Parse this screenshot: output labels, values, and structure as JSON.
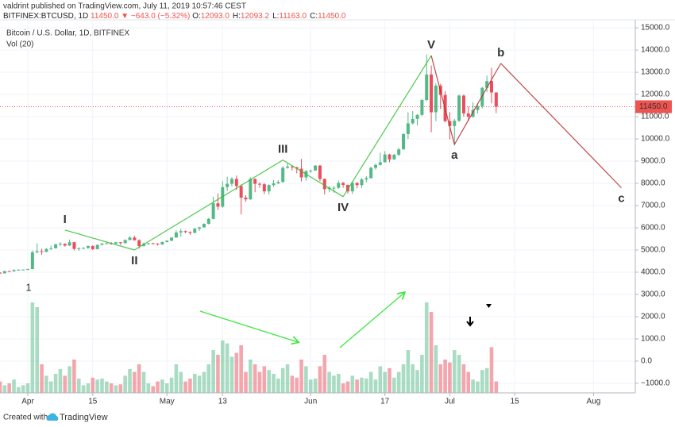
{
  "header": {
    "line1": "valdrint published on TradingView.com, July 11, 2019 10:57:46 CEST",
    "symbol": "BITFINEX:BTCUSD, 1D",
    "price": "11450.0",
    "change": "▼ −643.0 (−5.32%)",
    "ohlc": [
      {
        "label": "O:",
        "value": "12093.0"
      },
      {
        "label": "H:",
        "value": "12093.2"
      },
      {
        "label": "L:",
        "value": "11163.0"
      },
      {
        "label": "C:",
        "value": "11450.0"
      }
    ]
  },
  "footer": {
    "created": "Created with",
    "brand": "TradingView"
  },
  "chart_data": {
    "type": "candlestick",
    "title": "Bitcoin / U.S. Dollar, 1D, BITFINEX",
    "volume_label": "Vol (20)",
    "annotations": [
      "1"
    ],
    "up_color": "#53b987",
    "down_color": "#eb4d5c",
    "grid": true,
    "xlim": [
      "2019-03-26",
      "2019-08-10"
    ],
    "xticks": [
      {
        "value": "2019-04-01",
        "label": "Apr"
      },
      {
        "value": "2019-04-15",
        "label": "15"
      },
      {
        "value": "2019-05-01",
        "label": "May"
      },
      {
        "value": "2019-05-13",
        "label": "13"
      },
      {
        "value": "2019-06-01",
        "label": "Jun"
      },
      {
        "value": "2019-06-17",
        "label": "17"
      },
      {
        "value": "2019-07-01",
        "label": "Jul"
      },
      {
        "value": "2019-07-15",
        "label": "15"
      },
      {
        "value": "2019-08-01",
        "label": "Aug"
      }
    ],
    "ylim": [
      -1430,
      15360
    ],
    "yticks": [
      {
        "value": 15000,
        "label": "15000.0"
      },
      {
        "value": 14000,
        "label": "14000.0"
      },
      {
        "value": 13000,
        "label": "13000.0"
      },
      {
        "value": 12000,
        "label": "12000.0"
      },
      {
        "value": 11000,
        "label": "11000.0"
      },
      {
        "value": 10000,
        "label": "10000.0"
      },
      {
        "value": 9000,
        "label": "9000.0"
      },
      {
        "value": 8000,
        "label": "8000.0"
      },
      {
        "value": 7000,
        "label": "7000.0"
      },
      {
        "value": 6000,
        "label": "6000.0"
      },
      {
        "value": 5000,
        "label": "5000.0"
      },
      {
        "value": 4000,
        "label": "4000.0"
      },
      {
        "value": 3000,
        "label": "3000.0"
      },
      {
        "value": 2000,
        "label": "2000.0"
      },
      {
        "value": 1000,
        "label": "1000.0"
      },
      {
        "value": 0,
        "label": "0.0"
      },
      {
        "value": -1000,
        "label": "−1000.0"
      }
    ],
    "last_price": {
      "value": 11450,
      "label": "11450.0",
      "color": "#ef5350"
    },
    "volume_ylim": [
      0,
      100
    ],
    "x": [
      "2019-03-26",
      "2019-03-27",
      "2019-03-28",
      "2019-03-29",
      "2019-03-30",
      "2019-03-31",
      "2019-04-01",
      "2019-04-02",
      "2019-04-03",
      "2019-04-04",
      "2019-04-05",
      "2019-04-06",
      "2019-04-07",
      "2019-04-08",
      "2019-04-09",
      "2019-04-10",
      "2019-04-11",
      "2019-04-12",
      "2019-04-13",
      "2019-04-14",
      "2019-04-15",
      "2019-04-16",
      "2019-04-17",
      "2019-04-18",
      "2019-04-19",
      "2019-04-20",
      "2019-04-21",
      "2019-04-22",
      "2019-04-23",
      "2019-04-24",
      "2019-04-25",
      "2019-04-26",
      "2019-04-27",
      "2019-04-28",
      "2019-04-29",
      "2019-04-30",
      "2019-05-01",
      "2019-05-02",
      "2019-05-03",
      "2019-05-04",
      "2019-05-05",
      "2019-05-06",
      "2019-05-07",
      "2019-05-08",
      "2019-05-09",
      "2019-05-10",
      "2019-05-11",
      "2019-05-12",
      "2019-05-13",
      "2019-05-14",
      "2019-05-15",
      "2019-05-16",
      "2019-05-17",
      "2019-05-18",
      "2019-05-19",
      "2019-05-20",
      "2019-05-21",
      "2019-05-22",
      "2019-05-23",
      "2019-05-24",
      "2019-05-25",
      "2019-05-26",
      "2019-05-27",
      "2019-05-28",
      "2019-05-29",
      "2019-05-30",
      "2019-05-31",
      "2019-06-01",
      "2019-06-02",
      "2019-06-03",
      "2019-06-04",
      "2019-06-05",
      "2019-06-06",
      "2019-06-07",
      "2019-06-08",
      "2019-06-09",
      "2019-06-10",
      "2019-06-11",
      "2019-06-12",
      "2019-06-13",
      "2019-06-14",
      "2019-06-15",
      "2019-06-16",
      "2019-06-17",
      "2019-06-18",
      "2019-06-19",
      "2019-06-20",
      "2019-06-21",
      "2019-06-22",
      "2019-06-23",
      "2019-06-24",
      "2019-06-25",
      "2019-06-26",
      "2019-06-27",
      "2019-06-28",
      "2019-06-29",
      "2019-06-30",
      "2019-07-01",
      "2019-07-02",
      "2019-07-03",
      "2019-07-04",
      "2019-07-05",
      "2019-07-06",
      "2019-07-07",
      "2019-07-08",
      "2019-07-09",
      "2019-07-10",
      "2019-07-11"
    ],
    "candles": [
      [
        3980,
        4000,
        3930,
        3950
      ],
      [
        3950,
        4070,
        3940,
        4050
      ],
      [
        4050,
        4070,
        4020,
        4040
      ],
      [
        4040,
        4130,
        4030,
        4100
      ],
      [
        4100,
        4140,
        4070,
        4110
      ],
      [
        4110,
        4130,
        4090,
        4120
      ],
      [
        4120,
        4160,
        4100,
        4140
      ],
      [
        4140,
        4980,
        4140,
        4900
      ],
      [
        4900,
        5300,
        4850,
        4950
      ],
      [
        4950,
        5060,
        4780,
        4920
      ],
      [
        4920,
        5080,
        4900,
        5050
      ],
      [
        5050,
        5200,
        5000,
        5080
      ],
      [
        5080,
        5290,
        5070,
        5250
      ],
      [
        5250,
        5350,
        5180,
        5280
      ],
      [
        5280,
        5300,
        5150,
        5200
      ],
      [
        5200,
        5470,
        5180,
        5350
      ],
      [
        5350,
        5370,
        4980,
        5050
      ],
      [
        5050,
        5120,
        4960,
        5080
      ],
      [
        5080,
        5130,
        5050,
        5090
      ],
      [
        5090,
        5200,
        5060,
        5180
      ],
      [
        5180,
        5210,
        5000,
        5040
      ],
      [
        5040,
        5250,
        5030,
        5230
      ],
      [
        5230,
        5320,
        5210,
        5280
      ],
      [
        5280,
        5340,
        5260,
        5300
      ],
      [
        5300,
        5350,
        5240,
        5290
      ],
      [
        5290,
        5370,
        5270,
        5350
      ],
      [
        5350,
        5360,
        5230,
        5310
      ],
      [
        5310,
        5480,
        5280,
        5450
      ],
      [
        5450,
        5620,
        5440,
        5560
      ],
      [
        5560,
        5640,
        5420,
        5440
      ],
      [
        5440,
        5480,
        5060,
        5180
      ],
      [
        5180,
        5340,
        5150,
        5280
      ],
      [
        5280,
        5320,
        5240,
        5300
      ],
      [
        5300,
        5320,
        5260,
        5290
      ],
      [
        5290,
        5300,
        5200,
        5250
      ],
      [
        5250,
        5380,
        5230,
        5360
      ],
      [
        5360,
        5440,
        5340,
        5420
      ],
      [
        5420,
        5580,
        5400,
        5560
      ],
      [
        5560,
        5880,
        5550,
        5790
      ],
      [
        5790,
        5950,
        5600,
        5850
      ],
      [
        5850,
        5880,
        5750,
        5810
      ],
      [
        5810,
        5840,
        5680,
        5770
      ],
      [
        5770,
        6000,
        5760,
        5960
      ],
      [
        5960,
        6050,
        5860,
        6020
      ],
      [
        6020,
        6200,
        6010,
        6180
      ],
      [
        6180,
        6450,
        6150,
        6400
      ],
      [
        6400,
        7400,
        6380,
        7100
      ],
      [
        7100,
        7550,
        6800,
        6950
      ],
      [
        6950,
        8100,
        6900,
        7830
      ],
      [
        7830,
        8300,
        7650,
        7980
      ],
      [
        7980,
        8280,
        7860,
        8200
      ],
      [
        8200,
        8350,
        7700,
        7880
      ],
      [
        7880,
        7950,
        6600,
        7360
      ],
      [
        7360,
        7470,
        7170,
        7280
      ],
      [
        7280,
        8270,
        7260,
        8200
      ],
      [
        8200,
        8220,
        7600,
        7980
      ],
      [
        7980,
        8050,
        7800,
        7960
      ],
      [
        7960,
        8020,
        7520,
        7640
      ],
      [
        7640,
        7960,
        7500,
        7920
      ],
      [
        7920,
        8150,
        7850,
        8000
      ],
      [
        8000,
        8140,
        7960,
        8060
      ],
      [
        8060,
        8780,
        8030,
        8700
      ],
      [
        8700,
        8930,
        8660,
        8760
      ],
      [
        8760,
        8800,
        8580,
        8720
      ],
      [
        8720,
        8750,
        8450,
        8660
      ],
      [
        8660,
        9100,
        8080,
        8270
      ],
      [
        8270,
        8600,
        8120,
        8550
      ],
      [
        8550,
        8620,
        8470,
        8580
      ],
      [
        8580,
        8820,
        8560,
        8800
      ],
      [
        8800,
        8830,
        8100,
        8200
      ],
      [
        8200,
        8220,
        7500,
        7740
      ],
      [
        7740,
        7880,
        7600,
        7800
      ],
      [
        7800,
        7880,
        7580,
        7800
      ],
      [
        7800,
        8130,
        7750,
        8020
      ],
      [
        8020,
        8060,
        7800,
        7930
      ],
      [
        7930,
        7950,
        7540,
        7640
      ],
      [
        7640,
        8100,
        7520,
        8020
      ],
      [
        8020,
        8050,
        7780,
        7920
      ],
      [
        7920,
        8240,
        7800,
        8180
      ],
      [
        8180,
        8320,
        8050,
        8240
      ],
      [
        8240,
        8750,
        8200,
        8700
      ],
      [
        8700,
        8890,
        8620,
        8830
      ],
      [
        8830,
        9380,
        8800,
        8950
      ],
      [
        8950,
        9450,
        8940,
        9300
      ],
      [
        9300,
        9330,
        8950,
        9080
      ],
      [
        9080,
        9320,
        9060,
        9290
      ],
      [
        9290,
        9600,
        9220,
        9530
      ],
      [
        9530,
        10250,
        9520,
        10220
      ],
      [
        10220,
        11200,
        10000,
        10700
      ],
      [
        10700,
        11250,
        10650,
        10900
      ],
      [
        10900,
        11120,
        10600,
        11080
      ],
      [
        11080,
        11800,
        11030,
        11750
      ],
      [
        11750,
        13800,
        11700,
        12900
      ],
      [
        12900,
        13300,
        10300,
        11200
      ],
      [
        11200,
        12500,
        10800,
        12400
      ],
      [
        12400,
        12480,
        11350,
        11980
      ],
      [
        11980,
        12150,
        10750,
        10800
      ],
      [
        10800,
        11200,
        9980,
        10580
      ],
      [
        10580,
        10900,
        9700,
        10820
      ],
      [
        10820,
        12000,
        10750,
        11950
      ],
      [
        11950,
        12000,
        11000,
        11150
      ],
      [
        11150,
        11450,
        10800,
        11000
      ],
      [
        11000,
        11650,
        10950,
        11300
      ],
      [
        11300,
        11600,
        11150,
        11480
      ],
      [
        11480,
        12350,
        11370,
        12300
      ],
      [
        12300,
        12850,
        12100,
        12600
      ],
      [
        12600,
        13200,
        11600,
        12093
      ],
      [
        12093,
        12093.2,
        11163,
        11450
      ]
    ],
    "volume": [
      12,
      8,
      10,
      14,
      6,
      8,
      10,
      95,
      90,
      30,
      18,
      12,
      20,
      25,
      18,
      28,
      35,
      15,
      8,
      10,
      16,
      14,
      15,
      12,
      10,
      8,
      9,
      18,
      25,
      22,
      30,
      22,
      10,
      7,
      12,
      14,
      10,
      16,
      30,
      22,
      12,
      15,
      20,
      18,
      22,
      30,
      45,
      40,
      55,
      52,
      38,
      42,
      50,
      22,
      35,
      30,
      22,
      28,
      24,
      20,
      15,
      26,
      30,
      18,
      16,
      35,
      28,
      14,
      15,
      28,
      40,
      22,
      18,
      20,
      10,
      12,
      18,
      14,
      16,
      15,
      22,
      14,
      28,
      22,
      26,
      16,
      22,
      30,
      45,
      30,
      24,
      40,
      95,
      85,
      50,
      30,
      35,
      32,
      45,
      40,
      30,
      22,
      14,
      12,
      24,
      26,
      48,
      12
    ],
    "waves": [
      {
        "label": "I",
        "x": "2019-04-09",
        "y": 5900,
        "color": "#2fbf2f"
      },
      {
        "label": "II",
        "x": "2019-04-24",
        "y": 5000,
        "color": "#2fbf2f"
      },
      {
        "label": "III",
        "x": "2019-05-26",
        "y": 9050,
        "color": "#2fbf2f"
      },
      {
        "label": "IV",
        "x": "2019-06-08",
        "y": 7400,
        "color": "#2fbf2f"
      },
      {
        "label": "V",
        "x": "2019-06-27",
        "y": 13750,
        "color": "#2fbf2f"
      },
      {
        "label": "a",
        "x": "2019-07-02",
        "y": 9750,
        "color": "#b52a2a"
      },
      {
        "label": "b",
        "x": "2019-07-12",
        "y": 13400,
        "color": "#b52a2a"
      },
      {
        "label": "c",
        "x": "2019-08-07",
        "y": 7800,
        "color": "#b52a2a"
      }
    ]
  }
}
